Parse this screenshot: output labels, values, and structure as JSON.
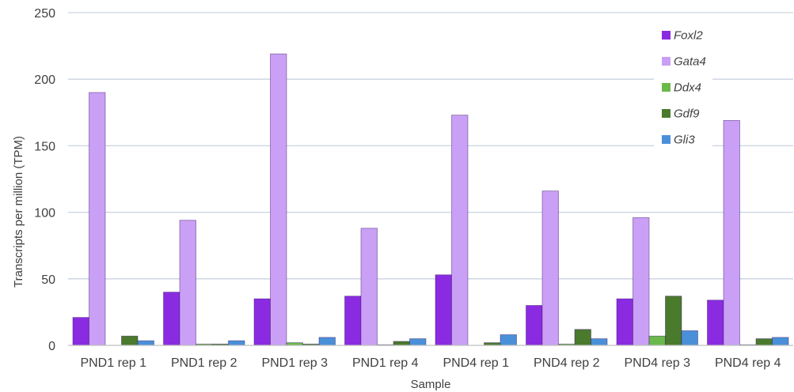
{
  "chart_data": {
    "type": "bar",
    "title": "",
    "xlabel": "Sample",
    "ylabel": "Transcripts per million (TPM)",
    "ylim": [
      0,
      250
    ],
    "yticks": [
      0,
      50,
      100,
      150,
      200,
      250
    ],
    "grid": true,
    "legend_position": "top-right",
    "categories": [
      "PND1 rep 1",
      "PND1 rep 2",
      "PND1 rep 3",
      "PND1 rep 4",
      "PND4 rep 1",
      "PND4 rep 2",
      "PND4 rep 3",
      "PND4 rep 4"
    ],
    "series": [
      {
        "name": "Foxl2",
        "color": "#8a2be2",
        "values": [
          21,
          40,
          35,
          37,
          53,
          30,
          35,
          34
        ]
      },
      {
        "name": "Gata4",
        "color": "#c9a0f5",
        "values": [
          190,
          94,
          219,
          88,
          173,
          116,
          96,
          169
        ]
      },
      {
        "name": "Ddx4",
        "color": "#6ab94a",
        "values": [
          0,
          1,
          2,
          0.5,
          0,
          1,
          7,
          0.5
        ]
      },
      {
        "name": "Gdf9",
        "color": "#4a7a2c",
        "values": [
          7,
          1,
          1,
          3,
          2,
          12,
          37,
          5
        ]
      },
      {
        "name": "Gli3",
        "color": "#4a90d9",
        "values": [
          3.5,
          3.5,
          6,
          5,
          8,
          5,
          11,
          6
        ]
      }
    ]
  }
}
